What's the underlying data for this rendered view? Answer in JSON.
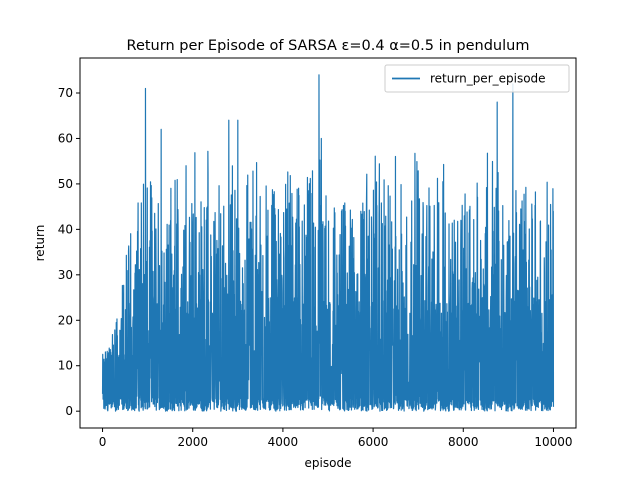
{
  "chart_data": {
    "type": "line",
    "title": "Return per Episode of SARSA ε=0.4 α=0.5 in pendulum",
    "xlabel": "episode",
    "ylabel": "return",
    "xlim": [
      -500,
      10500
    ],
    "ylim": [
      -3.7,
      77.7
    ],
    "xticks": [
      0,
      2000,
      4000,
      6000,
      8000,
      10000
    ],
    "xtick_labels": [
      "0",
      "2000",
      "4000",
      "6000",
      "8000",
      "10000"
    ],
    "yticks": [
      0,
      10,
      20,
      30,
      40,
      50,
      60,
      70
    ],
    "ytick_labels": [
      "0",
      "10",
      "20",
      "30",
      "40",
      "50",
      "60",
      "70"
    ],
    "grid": false,
    "legend_position": "top-right",
    "series": [
      {
        "name": "return_per_episode",
        "color": "#1f77b4",
        "description": "noisy per-episode return, 10000 episodes",
        "x_range": [
          0,
          10000
        ],
        "value_range": [
          0,
          74
        ],
        "notable_peaks": [
          {
            "x": 950,
            "y": 71
          },
          {
            "x": 1300,
            "y": 62
          },
          {
            "x": 2800,
            "y": 64
          },
          {
            "x": 3000,
            "y": 64
          },
          {
            "x": 4800,
            "y": 74
          },
          {
            "x": 8750,
            "y": 68
          },
          {
            "x": 9100,
            "y": 72
          },
          {
            "x": 4850,
            "y": 60
          },
          {
            "x": 1850,
            "y": 54
          }
        ]
      }
    ]
  }
}
